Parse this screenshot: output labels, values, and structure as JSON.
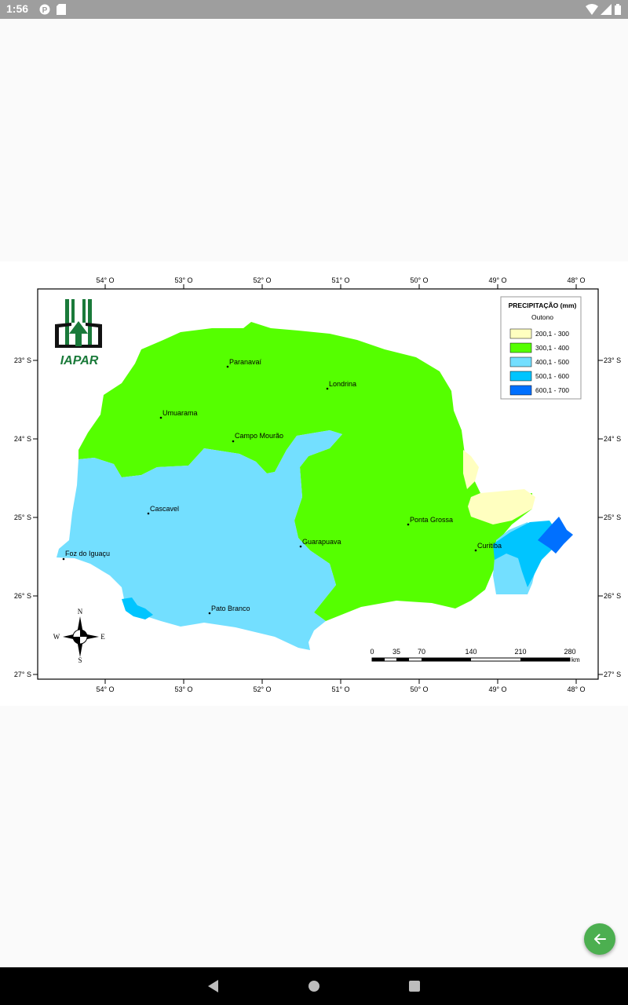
{
  "status_bar": {
    "time": "1:56",
    "icons": [
      "notification-p-icon",
      "sd-card-icon",
      "wifi-icon",
      "signal-icon",
      "battery-icon"
    ]
  },
  "map": {
    "legend": {
      "title": "PRECIPITAÇÃO (mm)",
      "subtitle": "Outono",
      "items": [
        {
          "label": "200,1 - 300",
          "color": "#ffffc0"
        },
        {
          "label": "300,1 - 400",
          "color": "#55ff00"
        },
        {
          "label": "400,1 - 500",
          "color": "#73dfff"
        },
        {
          "label": "500,1 - 600",
          "color": "#00c5ff"
        },
        {
          "label": "600,1 - 700",
          "color": "#0070ff"
        }
      ]
    },
    "lon_labels": [
      "54° O",
      "53° O",
      "52° O",
      "51° O",
      "50° O",
      "49° O",
      "48° O"
    ],
    "lat_labels": [
      "23° S",
      "24° S",
      "25° S",
      "26° S",
      "27° S"
    ],
    "cities": [
      "Paranavaí",
      "Londrina",
      "Umuarama",
      "Campo Mourão",
      "Cascavel",
      "Ponta Grossa",
      "Guarapuava",
      "Curitiba",
      "Foz do Iguaçu",
      "Pato Branco"
    ],
    "logo_text": "IAPAR",
    "compass": {
      "n": "N",
      "s": "S",
      "e": "E",
      "w": "W"
    },
    "scale": {
      "ticks": [
        "0",
        "35",
        "70",
        "140",
        "210",
        "280"
      ],
      "unit": "km"
    }
  },
  "navigation": {
    "back": "back-triangle-icon",
    "home": "home-circle-icon",
    "recents": "recents-square-icon"
  },
  "fab": {
    "icon": "arrow-left-icon",
    "color": "#4caf50"
  }
}
